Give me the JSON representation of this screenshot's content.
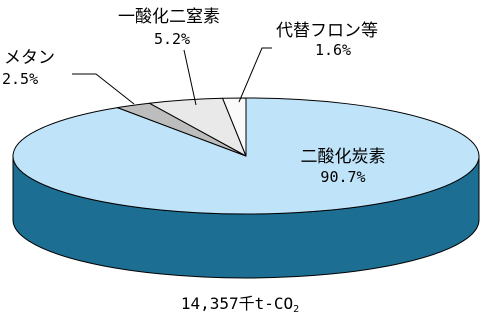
{
  "chart_data": {
    "type": "pie",
    "style": "3d",
    "slices": [
      {
        "name": "二酸化炭素",
        "value": 90.7,
        "label": "90.7%",
        "color": "#bfe3f8",
        "side_color": "#1c6f93"
      },
      {
        "name": "メタン",
        "value": 2.5,
        "label": "2.5%",
        "color": "#bdbdbd",
        "side_color": "#1c6f93"
      },
      {
        "name": "一酸化二窒素",
        "value": 5.2,
        "label": "5.2%",
        "color": "#e9e9e9",
        "side_color": "#1c6f93"
      },
      {
        "name": "代替フロン等",
        "value": 1.6,
        "label": "1.6%",
        "color": "#fafafa",
        "side_color": "#1c6f93"
      }
    ],
    "total_label": "14,357千t-CO",
    "total_label_sub": "2",
    "outline_color": "#000000"
  }
}
